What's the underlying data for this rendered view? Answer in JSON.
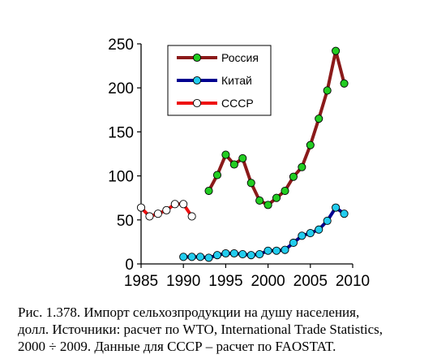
{
  "chart_data": {
    "type": "line",
    "xlim": [
      1985,
      2010
    ],
    "ylim": [
      0,
      250
    ],
    "x_ticks": [
      1985,
      1990,
      1995,
      2000,
      2005,
      2010
    ],
    "y_ticks": [
      0,
      50,
      100,
      150,
      200,
      250
    ],
    "grid": false,
    "legend_position": "top-left inside plot",
    "series": [
      {
        "name": "Россия",
        "line_color": "#8b1a1a",
        "marker_fill": "#22cc22",
        "points": [
          [
            1993,
            83
          ],
          [
            1994,
            101
          ],
          [
            1995,
            124
          ],
          [
            1996,
            113
          ],
          [
            1997,
            120
          ],
          [
            1998,
            92
          ],
          [
            1999,
            72
          ],
          [
            2000,
            67
          ],
          [
            2001,
            75
          ],
          [
            2002,
            83
          ],
          [
            2003,
            99
          ],
          [
            2004,
            110
          ],
          [
            2005,
            135
          ],
          [
            2006,
            165
          ],
          [
            2007,
            197
          ],
          [
            2008,
            242
          ],
          [
            2009,
            205
          ]
        ]
      },
      {
        "name": "Китай",
        "line_color": "#000090",
        "marker_fill": "#22ccee",
        "points": [
          [
            1990,
            8
          ],
          [
            1991,
            8
          ],
          [
            1992,
            8
          ],
          [
            1993,
            7
          ],
          [
            1994,
            10
          ],
          [
            1995,
            12
          ],
          [
            1996,
            12
          ],
          [
            1997,
            11
          ],
          [
            1998,
            10
          ],
          [
            1999,
            11
          ],
          [
            2000,
            15
          ],
          [
            2001,
            15
          ],
          [
            2002,
            16
          ],
          [
            2003,
            24
          ],
          [
            2004,
            32
          ],
          [
            2005,
            35
          ],
          [
            2006,
            39
          ],
          [
            2007,
            49
          ],
          [
            2008,
            64
          ],
          [
            2009,
            57
          ]
        ]
      },
      {
        "name": "СССР",
        "line_color": "#ee1111",
        "marker_fill": "#ffffff",
        "points": [
          [
            1985,
            64
          ],
          [
            1986,
            54
          ],
          [
            1987,
            57
          ],
          [
            1988,
            61
          ],
          [
            1989,
            68
          ],
          [
            1990,
            68
          ],
          [
            1991,
            54
          ]
        ]
      }
    ]
  },
  "caption": {
    "line1": "Рис. 1.378. Импорт сельхозпродукции на душу населения,",
    "line2": "долл. Источники: расчет по WTO, International Trade Statistics,",
    "line3": "2000 ÷ 2009. Данные для СССР – расчет по FAOSTAT."
  }
}
